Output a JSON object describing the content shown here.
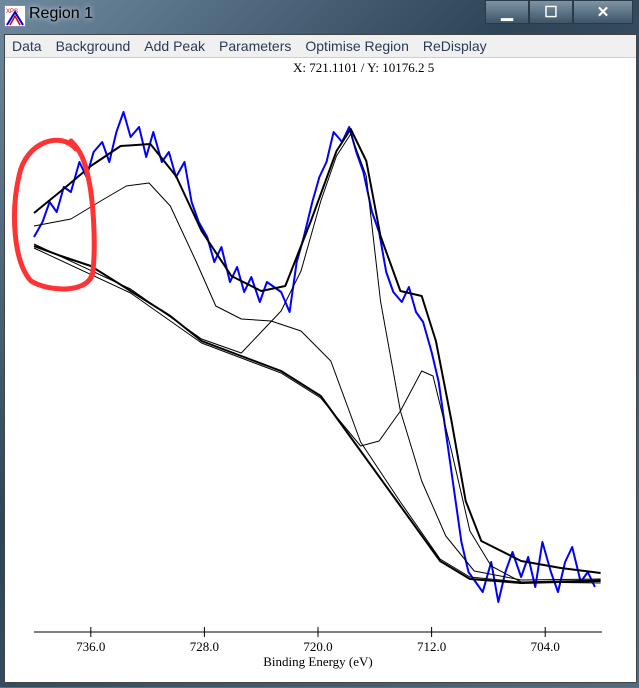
{
  "window": {
    "title": "Region 1",
    "icon": "xps-app-icon",
    "controls": [
      "minimize",
      "maximize",
      "close"
    ]
  },
  "menu": [
    "Data",
    "Background",
    "Add Peak",
    "Parameters",
    "Optimise Region",
    "ReDisplay"
  ],
  "cursor_readout": "X: 721.1101 / Y: 10176.2 5",
  "chart_data": {
    "type": "line",
    "xlabel": "Binding Energy (eV)",
    "ylabel": "",
    "xlim": [
      740,
      700
    ],
    "x_reversed": true,
    "ylim": [
      0,
      520
    ],
    "y_units": "arbitrary (no y axis shown)",
    "xticks": [
      736.0,
      728.0,
      720.0,
      712.0,
      704.0
    ],
    "xtick_labels": [
      "736.0",
      "728.0",
      "720.0",
      "712.0",
      "704.0"
    ],
    "grid": false,
    "colors": {
      "raw": "#0000ff",
      "fit": "#000000",
      "annotation": "#ff3333"
    },
    "series": [
      {
        "kind": "raw",
        "x": [
          740,
          739.4,
          738.9,
          738.4,
          737.9,
          737.4,
          736.8,
          736.3,
          735.8,
          735.2,
          734.7,
          734.2,
          733.7,
          733.2,
          732.6,
          732.1,
          731.6,
          731.0,
          730.5,
          730.0,
          729.4,
          728.9,
          728.4,
          727.8,
          727.3,
          726.8,
          726.2,
          725.7,
          725.2,
          724.7,
          724.1,
          723.6,
          723.1,
          722.6,
          722.0,
          721.5,
          721.0,
          720.4,
          719.9,
          719.4,
          718.9,
          718.3,
          717.8,
          717.3,
          716.8,
          716.2,
          715.7,
          715.2,
          714.7,
          714.1,
          713.6,
          713.1,
          712.6,
          712.0,
          711.5,
          711.0,
          710.5,
          709.9,
          709.4,
          708.9,
          708.4,
          707.8,
          707.3,
          706.8,
          706.3,
          705.7,
          705.2,
          704.7,
          704.2,
          703.6,
          703.1,
          702.6,
          702.1,
          701.5,
          701.0,
          700.5
        ],
        "y": [
          395,
          410,
          430,
          420,
          445,
          440,
          470,
          455,
          480,
          490,
          470,
          500,
          520,
          495,
          505,
          475,
          500,
          470,
          480,
          455,
          470,
          430,
          410,
          395,
          370,
          385,
          350,
          365,
          340,
          355,
          330,
          350,
          345,
          340,
          320,
          370,
          395,
          430,
          455,
          470,
          500,
          490,
          505,
          480,
          460,
          420,
          400,
          360,
          340,
          330,
          345,
          320,
          310,
          280,
          250,
          200,
          150,
          90,
          60,
          50,
          40,
          70,
          30,
          60,
          80,
          55,
          75,
          45,
          90,
          60,
          40,
          70,
          85,
          50,
          60,
          45
        ]
      },
      {
        "kind": "envelope",
        "x": [
          740,
          738.1,
          736,
          733.9,
          731.8,
          730,
          728.2,
          726.1,
          724,
          722.3,
          720.5,
          718.7,
          717.7,
          716.6,
          715.6,
          714.2,
          712.7,
          711.7,
          710.6,
          709.6,
          708.5,
          705.7,
          702.9,
          700.1
        ],
        "y": [
          419,
          441,
          466,
          486,
          488,
          456,
          401,
          356,
          341,
          346,
          411,
          481,
          503,
          471,
          396,
          341,
          336,
          291,
          211,
          131,
          91,
          71,
          64,
          59
        ]
      },
      {
        "kind": "background",
        "x": [
          740,
          738.1,
          736,
          733.2,
          730.4,
          728.2,
          725.4,
          722.6,
          719.8,
          717,
          714.2,
          711.4,
          709.3,
          705.7,
          700.1
        ],
        "y": [
          386,
          376,
          366,
          341,
          316,
          291,
          276,
          261,
          236,
          181,
          126,
          71,
          53,
          49,
          51
        ]
      },
      {
        "kind": "component",
        "x": [
          740,
          737.4,
          735.3,
          733.5,
          731.9,
          730.4,
          728.6,
          727.2,
          725.4,
          723.3,
          721.2,
          719.1,
          717,
          714.2,
          711.4,
          709.3,
          705.7,
          700.1
        ],
        "y": [
          406,
          413,
          431,
          446,
          449,
          426,
          371,
          326,
          313,
          311,
          301,
          271,
          190,
          130,
          73,
          55,
          50,
          52
        ]
      },
      {
        "kind": "component",
        "x": [
          740,
          733.2,
          728.2,
          725.4,
          722.6,
          721.2,
          719.8,
          718.7,
          717.7,
          716.6,
          715.6,
          714.2,
          712.7,
          711,
          709,
          705.7,
          700.1
        ],
        "y": [
          388,
          343,
          293,
          279,
          321,
          361,
          431,
          476,
          498,
          456,
          331,
          221,
          151,
          96,
          61,
          52,
          53
        ]
      },
      {
        "kind": "component",
        "x": [
          740,
          733.2,
          728.2,
          725.4,
          722.6,
          719.8,
          717,
          715.7,
          714.2,
          712.7,
          711.9,
          710.6,
          709.3,
          707.8,
          705.7,
          700.1
        ],
        "y": [
          384,
          339,
          289,
          274,
          259,
          234,
          186,
          191,
          221,
          261,
          256,
          181,
          101,
          66,
          50,
          49
        ]
      }
    ]
  }
}
